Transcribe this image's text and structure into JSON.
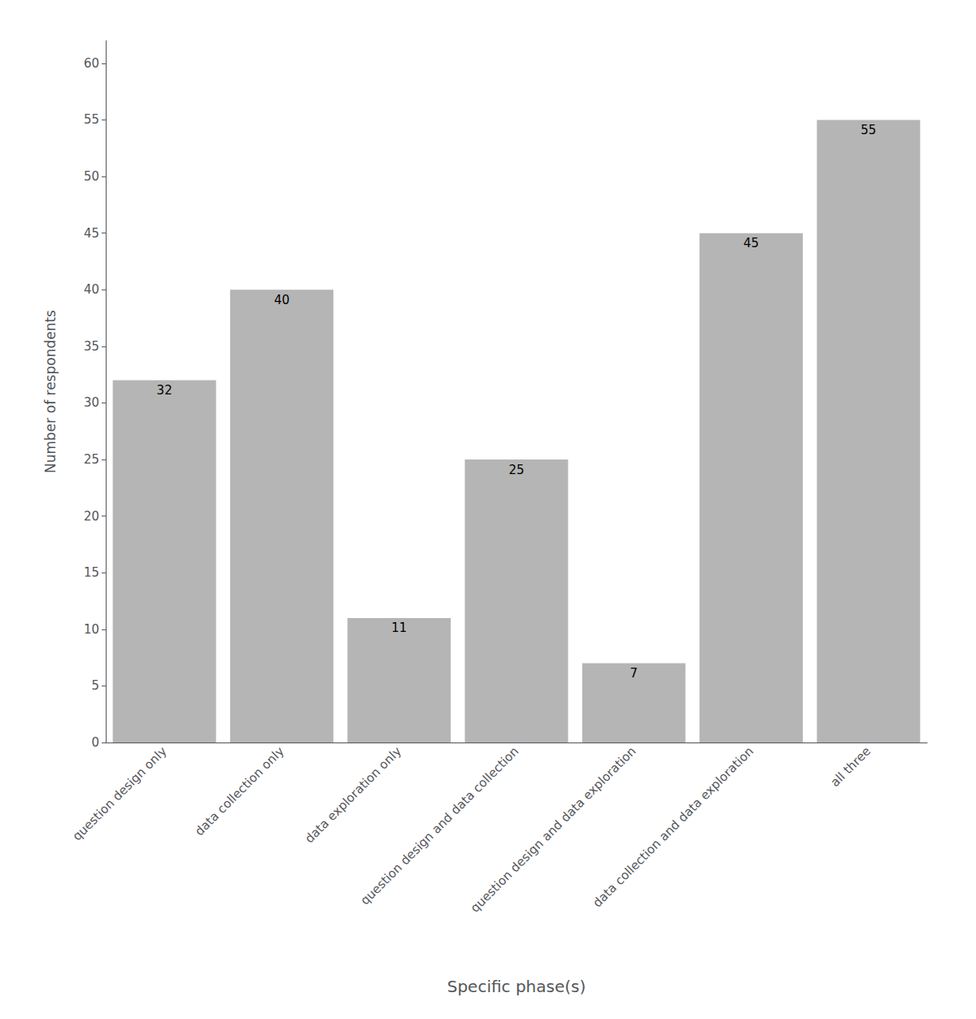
{
  "chart_data": {
    "type": "bar",
    "categories": [
      "question design only",
      "data collection only",
      "data exploration only",
      "question design and data collection",
      "question design and data exploration",
      "data collection and data exploration",
      "all three"
    ],
    "values": [
      32,
      40,
      11,
      25,
      7,
      45,
      55
    ],
    "color": "#b5b5b5",
    "xlabel": "Specific phase(s)",
    "ylabel": "Number of respondents",
    "ylim": [
      0,
      62
    ],
    "yticks": [
      0,
      5,
      10,
      15,
      20,
      25,
      30,
      35,
      40,
      45,
      50,
      55,
      60
    ],
    "grid": false,
    "data_labels": true
  }
}
